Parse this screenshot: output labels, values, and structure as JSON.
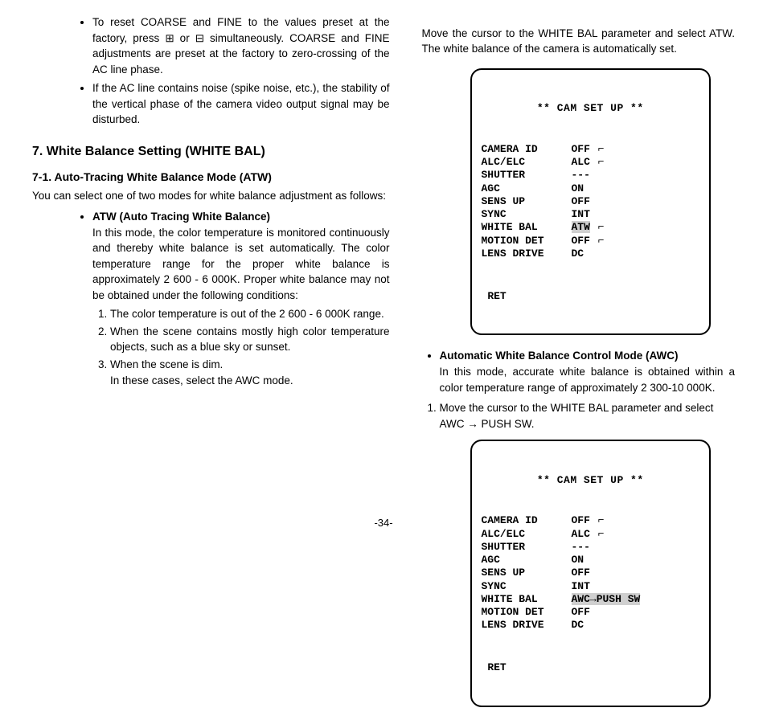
{
  "left": {
    "bullets": [
      "To reset COARSE and FINE to the values preset at the factory, press ⊞ or ⊟ simultaneously. COARSE and FINE adjustments are preset at the factory to zero-crossing of the AC line phase.",
      "If the AC line contains noise (spike noise, etc.), the stability of the vertical phase of the camera video output signal may be disturbed."
    ],
    "h2": "7. White Balance Setting (WHITE BAL)",
    "h3": "7-1. Auto-Tracing White Balance Mode (ATW)",
    "lead": "You can select one of two modes for white balance adjustment as follows:",
    "sub_bold": "ATW (Auto Tracing White Balance)",
    "atw_desc": "In this mode, the color temperature is monitored continuously and thereby white balance is set automatically. The color temperature range for the proper white balance is approximately 2 600 - 6 000K. Proper white balance may not be obtained under the following conditions:",
    "num": [
      "The color temperature is out of the 2 600 - 6 000K range.",
      "When the scene contains mostly high color temperature objects, such as a blue sky or sunset.",
      "When the scene is dim."
    ],
    "tail": "In these cases, select the AWC mode."
  },
  "right": {
    "lead": "Move the cursor to the WHITE BAL parameter and select ATW. The white balance of the camera is automatically set.",
    "awc_bold": "Automatic White Balance Control Mode (AWC)",
    "awc_desc": "In this mode, accurate white balance is obtained within a color temperature range of approximately 2 300-10 000K.",
    "awc_step": "Move the cursor to the WHITE BAL parameter and select AWC → PUSH SW."
  },
  "menu1": {
    "title": "** CAM SET UP **",
    "rows": [
      [
        "CAMERA ID",
        "OFF",
        "hook"
      ],
      [
        "ALC/ELC",
        "ALC",
        "hook"
      ],
      [
        "SHUTTER",
        "---",
        ""
      ],
      [
        "AGC",
        "ON",
        ""
      ],
      [
        "SENS UP",
        "OFF",
        ""
      ],
      [
        "SYNC",
        "INT",
        ""
      ],
      [
        "WHITE BAL",
        "ATW",
        "hook-hl"
      ],
      [
        "MOTION DET",
        "OFF",
        "hook"
      ],
      [
        "LENS DRIVE",
        "DC",
        ""
      ]
    ],
    "ret": "RET"
  },
  "menu2": {
    "title": "** CAM SET UP **",
    "rows": [
      [
        "CAMERA ID",
        "OFF",
        "hook"
      ],
      [
        "ALC/ELC",
        "ALC",
        "hook"
      ],
      [
        "SHUTTER",
        "---",
        ""
      ],
      [
        "AGC",
        "ON",
        ""
      ],
      [
        "SENS UP",
        "OFF",
        ""
      ],
      [
        "SYNC",
        "INT",
        ""
      ],
      [
        "WHITE BAL",
        "AWC→PUSH SW",
        "hl"
      ],
      [
        "MOTION DET",
        "OFF",
        ""
      ],
      [
        "LENS DRIVE",
        "DC",
        ""
      ]
    ],
    "ret": "RET"
  },
  "page_num": "-34-"
}
